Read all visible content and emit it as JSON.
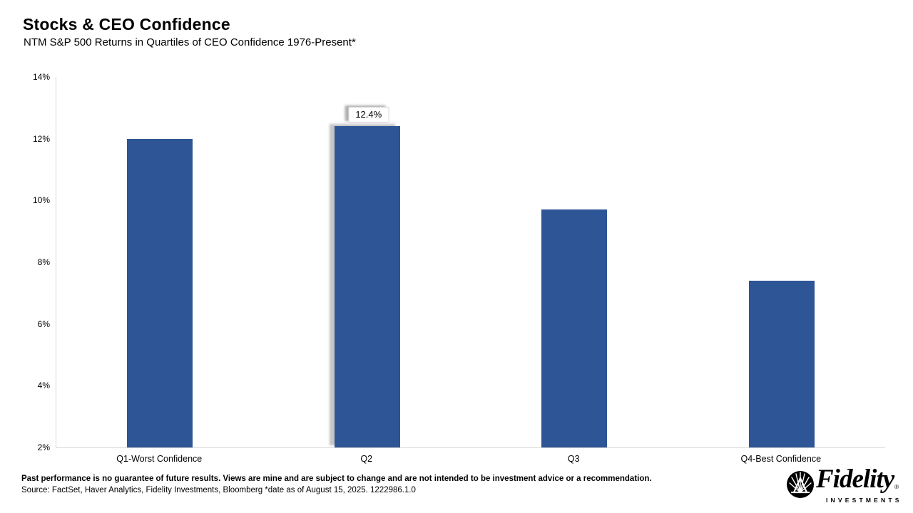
{
  "header": {
    "title": "Stocks & CEO Confidence",
    "subtitle": "NTM S&P 500 Returns in Quartiles of CEO Confidence 1976-Present*"
  },
  "chart_data": {
    "type": "bar",
    "categories": [
      "Q1-Worst Confidence",
      "Q2",
      "Q3",
      "Q4-Best Confidence"
    ],
    "values": [
      12.0,
      12.4,
      9.7,
      7.4
    ],
    "title": "Stocks & CEO Confidence",
    "subtitle": "NTM S&P 500 Returns in Quartiles of CEO Confidence 1976-Present*",
    "xlabel": "",
    "ylabel": "",
    "ylim": [
      2,
      14
    ],
    "ytick_step": 2,
    "ytick_suffix": "%",
    "grid": false,
    "legend": "none",
    "bar_color": "#2e5596",
    "data_labels": [
      {
        "category": "Q2",
        "text": "12.4%",
        "highlighted": true
      }
    ]
  },
  "footer": {
    "disclaimer": "Past performance is no guarantee of future results. Views are mine and are subject to change and are not intended to be investment advice or a recommendation.",
    "source": "Source: FactSet, Haver Analytics, Fidelity Investments, Bloomberg *date as of August 15, 2025. 1222986.1.0"
  },
  "brand": {
    "name": "Fidelity",
    "registered": "®",
    "sub": "INVESTMENTS"
  }
}
